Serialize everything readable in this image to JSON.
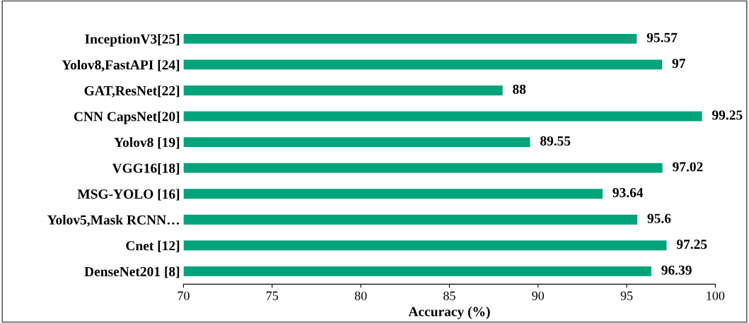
{
  "chart_data": {
    "type": "bar",
    "orientation": "horizontal",
    "xlabel": "Accuracy (%)",
    "categories": [
      "InceptionV3[25]",
      "Yolov8,FastAPI [24]",
      "GAT,ResNet[22]",
      "CNN CapsNet[20]",
      "Yolov8 [19]",
      "VGG16[18]",
      "MSG-YOLO [16]",
      "Yolov5,Mask RCNN…",
      "Cnet [12]",
      "DenseNet201 [8]"
    ],
    "values": [
      95.57,
      97,
      88,
      99.25,
      89.55,
      97.02,
      93.64,
      95.6,
      97.25,
      96.39
    ],
    "color": "#00a37a",
    "xlim": [
      70,
      100
    ],
    "xticks": [
      70,
      75,
      80,
      85,
      90,
      95,
      100
    ],
    "data_labels": true,
    "grid": false,
    "legend": false
  }
}
